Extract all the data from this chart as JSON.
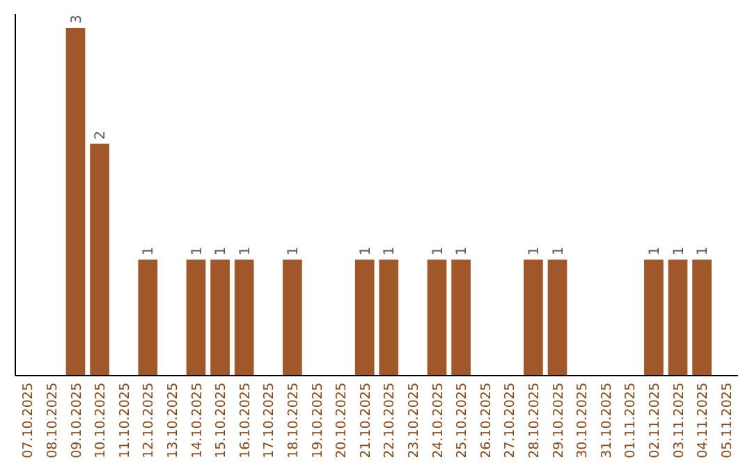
{
  "chart_data": {
    "type": "bar",
    "categories": [
      "07.10.2025",
      "08.10.2025",
      "09.10.2025",
      "10.10.2025",
      "11.10.2025",
      "12.10.2025",
      "13.10.2025",
      "14.10.2025",
      "15.10.2025",
      "16.10.2025",
      "17.10.2025",
      "18.10.2025",
      "19.10.2025",
      "20.10.2025",
      "21.10.2025",
      "22.10.2025",
      "23.10.2025",
      "24.10.2025",
      "25.10.2025",
      "26.10.2025",
      "27.10.2025",
      "28.10.2025",
      "29.10.2025",
      "30.10.2025",
      "31.10.2025",
      "01.11.2025",
      "02.11.2025",
      "03.11.2025",
      "04.11.2025",
      "05.11.2025"
    ],
    "values": [
      null,
      null,
      3,
      2,
      null,
      1,
      null,
      1,
      1,
      1,
      null,
      1,
      null,
      null,
      1,
      1,
      null,
      1,
      1,
      null,
      null,
      1,
      1,
      null,
      null,
      null,
      1,
      1,
      1,
      null
    ],
    "color": "#a0582a",
    "ylim": [
      0,
      3
    ],
    "data_labels": true,
    "tick_labels": "x"
  }
}
